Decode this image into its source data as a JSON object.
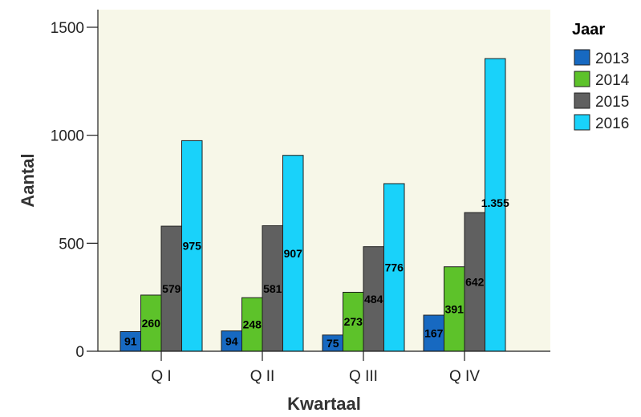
{
  "chart_data": {
    "type": "bar",
    "categories": [
      "Q I",
      "Q II",
      "Q III",
      "Q IV"
    ],
    "series": [
      {
        "name": "2013",
        "values": [
          91,
          94,
          75,
          167
        ],
        "labels": [
          "91",
          "94",
          "75",
          "167"
        ],
        "color": "#1769c1"
      },
      {
        "name": "2014",
        "values": [
          260,
          248,
          273,
          391
        ],
        "labels": [
          "260",
          "248",
          "273",
          "391"
        ],
        "color": "#5dc22a"
      },
      {
        "name": "2015",
        "values": [
          579,
          581,
          484,
          642
        ],
        "labels": [
          "579",
          "581",
          "484",
          "642"
        ],
        "color": "#606060"
      },
      {
        "name": "2016",
        "values": [
          975,
          907,
          776,
          1355
        ],
        "labels": [
          "975",
          "907",
          "776",
          "1.355"
        ],
        "color": "#19d2fa"
      }
    ],
    "xlabel": "Kwartaal",
    "ylabel": "Aantal",
    "ylim": [
      0,
      1500
    ],
    "yticks": [
      0,
      500,
      1000,
      1500
    ],
    "legend_title": "Jaar",
    "legend_position": "right",
    "grid": false,
    "plot_background": "#f7f7e8"
  }
}
